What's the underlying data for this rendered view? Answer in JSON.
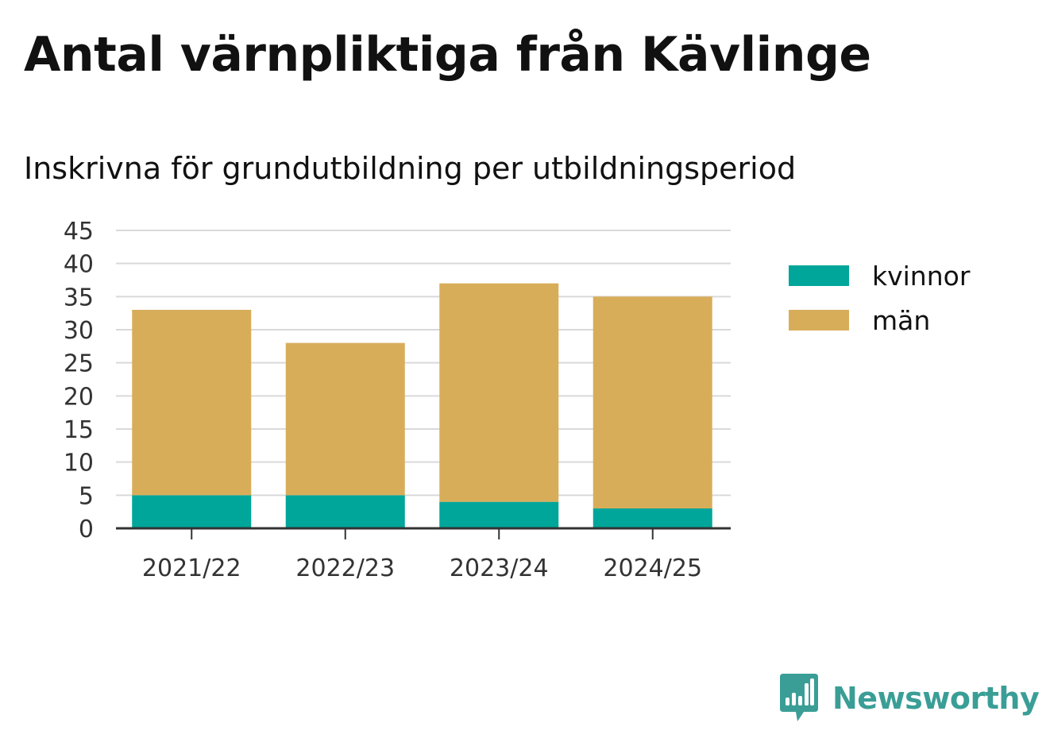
{
  "chart_data": {
    "type": "bar",
    "stacked": true,
    "title": "Antal värnpliktiga från Kävlinge",
    "subtitle": "Inskrivna för grundutbildning per utbildningsperiod",
    "xlabel": "",
    "ylabel": "",
    "categories": [
      "2021/22",
      "2022/23",
      "2023/24",
      "2024/25"
    ],
    "series": [
      {
        "name": "kvinnor",
        "color": "#00a69a",
        "values": [
          5,
          5,
          4,
          3
        ]
      },
      {
        "name": "män",
        "color": "#d8ad5a",
        "values": [
          28,
          23,
          33,
          32
        ]
      }
    ],
    "ylim": [
      0,
      45
    ],
    "yticks": [
      "0",
      "5",
      "10",
      "15",
      "20",
      "25",
      "30",
      "35",
      "40",
      "45"
    ],
    "grid": true,
    "legend": "right"
  },
  "brand": {
    "name": "Newsworthy",
    "icon": "newsworthy-logo-icon",
    "color": "#3a9e96"
  }
}
